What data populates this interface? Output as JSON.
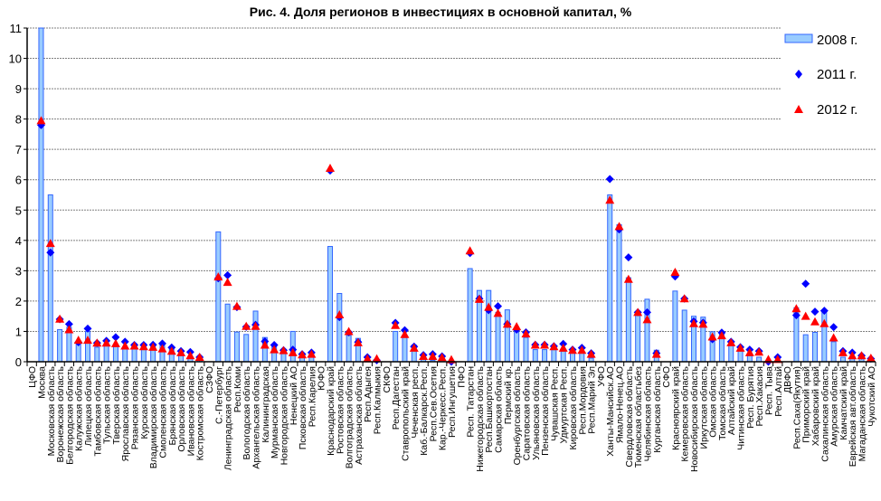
{
  "chart_data": {
    "type": "bar",
    "title": "Рис. 4. Доля регионов в инвестициях в основной капитал, %",
    "xlabel": "",
    "ylabel": "",
    "ylim": [
      0,
      11
    ],
    "yticks": [
      0,
      1,
      2,
      3,
      4,
      5,
      6,
      7,
      8,
      9,
      10,
      11
    ],
    "grid": true,
    "legend_position": "top-right",
    "categories": [
      "ЦФО",
      "Москва",
      "Московская область",
      "Воронежская область",
      "Белгородская область",
      "Калужская область",
      "Липецкая область",
      "Тамбовская область",
      "Тульская область",
      "Тверская область",
      "Ярославская область",
      "Рязанская область",
      "Курская область",
      "Владимирская область",
      "Смоленская область",
      "Брянская область",
      "Орловская область",
      "Ивановская область",
      "Костромская область",
      "СЗФО",
      "С.-Петербург",
      "Ленинградская область",
      "Респ.Коми",
      "Вологодская область",
      "Архангельская область",
      "Калининградская",
      "Мурманская область",
      "Новгородская область",
      "Ненецкий АО",
      "Псковская область",
      "Респ.Карелия",
      "ЮФО",
      "Краснодарский край",
      "Ростовская область",
      "Волгоградская область",
      "Астраханская область",
      "Респ.Адыгея",
      "Респ.Калмыкия",
      "СКФО",
      "Респ.Дагестан",
      "Ставропольский край",
      "Чеченская респ.",
      "Каб.-Балкарск.Респ.",
      "Респ.Сев.Осетия",
      "Кар.-Черкесс.Респ.",
      "Респ.Ингушетия",
      "ПФО",
      "Респ. Татарстан",
      "Нижегородская область",
      "Респ.Башкортостан",
      "Самарская область",
      "Пермский кр.",
      "Оренбургская область",
      "Саратовская область",
      "Ульяновская область",
      "Пензенская область",
      "Чувашская Респ.",
      "Удмуртская Респ.",
      "Кировская область",
      "Респ.Мордовия",
      "Респ.Марий Эл",
      "УФО",
      "Ханты-Мансийск.АО",
      "Ямало-Ненец.АО",
      "Свердловская область",
      "Тюменская областьбез",
      "Челябинская область",
      "Курганская область",
      "СФО",
      "Красноярский край",
      "Кемеровская область",
      "Новосибирская область",
      "Иркутская область",
      "Омская область",
      "Томская область",
      "Алтайский край",
      "Читинская область",
      "Респ. Бурятия",
      "Респ.Хакасия",
      "Респ. Тыва",
      "Респ.Алтай",
      "ДВФО",
      "Респ.Саха(Якутия)",
      "Приморский край",
      "Хабаровский край",
      "Сахалинская область",
      "Амурская область",
      "Камчатский край",
      "Еврейская авт.область",
      "Магаданская область",
      "Чукотский АО"
    ],
    "series": [
      {
        "name": "2008 г.",
        "kind": "bar",
        "color": "#99ccff",
        "stroke": "#3366ff",
        "values": [
          null,
          11,
          5.5,
          1.06,
          1.14,
          0.6,
          1.0,
          0.48,
          0.55,
          0.5,
          0.45,
          0.6,
          0.6,
          0.55,
          0.55,
          0.4,
          0.2,
          0.1,
          0.1,
          null,
          4.28,
          1.9,
          0.98,
          0.9,
          1.67,
          0.8,
          0.55,
          0.35,
          1.0,
          0.15,
          0.15,
          null,
          3.8,
          2.25,
          0.87,
          0.77,
          0.05,
          0.02,
          null,
          1.0,
          0.8,
          0.55,
          0.1,
          0.05,
          0.05,
          0.02,
          null,
          3.07,
          2.35,
          2.35,
          1.63,
          1.71,
          1.04,
          0.8,
          0.4,
          0.4,
          0.4,
          0.35,
          0.3,
          0.3,
          0.12,
          null,
          5.5,
          4.52,
          2.77,
          1.58,
          2.06,
          0.38,
          null,
          2.33,
          1.7,
          1.5,
          1.47,
          0.99,
          0.99,
          0.6,
          0.35,
          0.2,
          0.15,
          0.02,
          0.02,
          null,
          1.78,
          0.89,
          0.97,
          1.7,
          0.66,
          0.15,
          0.1,
          0.1,
          0.03
        ]
      },
      {
        "name": "2011 г.",
        "kind": "diamond",
        "color": "#0000ff",
        "values": [
          null,
          7.8,
          3.6,
          1.4,
          1.24,
          0.64,
          1.09,
          0.62,
          0.69,
          0.81,
          0.66,
          0.55,
          0.55,
          0.56,
          0.6,
          0.47,
          0.35,
          0.32,
          0.15,
          null,
          2.75,
          2.85,
          1.8,
          1.15,
          1.22,
          0.67,
          0.55,
          0.38,
          0.4,
          0.25,
          0.3,
          null,
          6.3,
          1.47,
          0.97,
          0.65,
          0.15,
          0.05,
          null,
          1.28,
          1.04,
          0.5,
          0.22,
          0.25,
          0.18,
          0.0,
          null,
          3.58,
          2.08,
          1.7,
          1.83,
          1.24,
          1.06,
          0.97,
          0.56,
          0.56,
          0.51,
          0.59,
          0.4,
          0.46,
          0.28,
          null,
          6.02,
          4.36,
          3.44,
          1.63,
          1.63,
          0.28,
          null,
          2.81,
          2.08,
          1.33,
          1.29,
          0.74,
          0.96,
          0.66,
          0.48,
          0.4,
          0.35,
          0.0,
          0.15,
          null,
          1.53,
          2.57,
          1.65,
          1.68,
          1.14,
          0.35,
          0.3,
          0.2,
          0.1
        ]
      },
      {
        "name": "2012 г.",
        "kind": "triangle",
        "color": "#ff0000",
        "values": [
          null,
          7.95,
          3.9,
          1.41,
          1.06,
          0.71,
          0.71,
          0.62,
          0.62,
          0.6,
          0.52,
          0.52,
          0.5,
          0.48,
          0.43,
          0.35,
          0.3,
          0.2,
          0.15,
          null,
          2.8,
          2.62,
          1.83,
          1.17,
          1.17,
          0.55,
          0.4,
          0.37,
          0.3,
          0.23,
          0.25,
          null,
          6.38,
          1.55,
          1.0,
          0.63,
          0.1,
          0.1,
          null,
          1.2,
          0.9,
          0.45,
          0.18,
          0.18,
          0.14,
          0.07,
          null,
          3.66,
          2.06,
          1.8,
          1.6,
          1.24,
          1.16,
          0.92,
          0.55,
          0.55,
          0.5,
          0.45,
          0.38,
          0.38,
          0.25,
          null,
          5.33,
          4.46,
          2.72,
          1.63,
          1.39,
          0.25,
          null,
          2.95,
          2.08,
          1.26,
          1.24,
          0.82,
          0.86,
          0.63,
          0.45,
          0.3,
          0.32,
          0.08,
          0.08,
          null,
          1.75,
          1.5,
          1.32,
          1.26,
          0.79,
          0.3,
          0.2,
          0.2,
          0.12
        ]
      }
    ]
  }
}
